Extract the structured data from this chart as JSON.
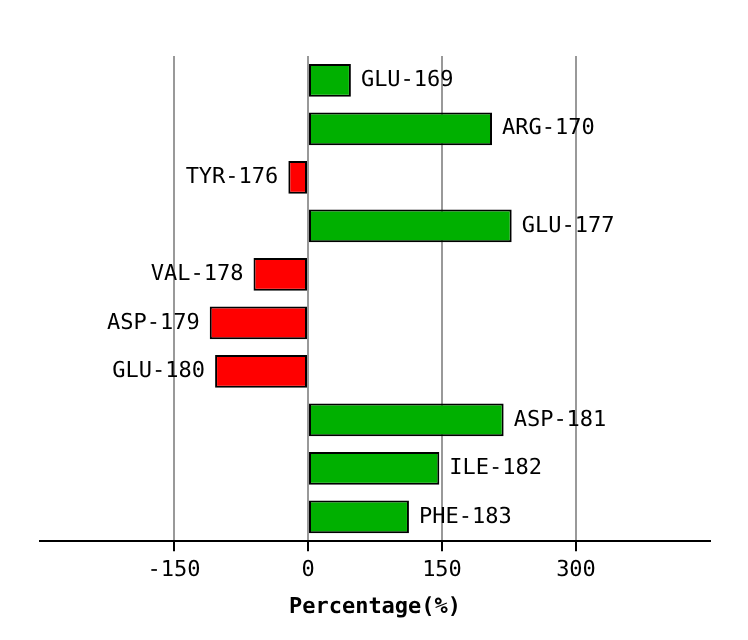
{
  "chart_data": {
    "type": "bar",
    "orientation": "horizontal",
    "xlabel": "Percentage(%)",
    "categories": [
      "GLU-169",
      "ARG-170",
      "TYR-176",
      "GLU-177",
      "VAL-178",
      "ASP-179",
      "GLU-180",
      "ASP-181",
      "ILE-182",
      "PHE-183"
    ],
    "values": [
      48,
      206,
      -22,
      228,
      -61,
      -110,
      -104,
      219,
      147,
      113
    ],
    "colors": [
      "#00b000",
      "#00b000",
      "#ff0000",
      "#00b000",
      "#ff0000",
      "#ff0000",
      "#ff0000",
      "#00b000",
      "#00b000",
      "#00b000"
    ],
    "xlim": [
      -300,
      450
    ],
    "xticks": [
      -150,
      0,
      150,
      300
    ],
    "grid": "x",
    "legend": false
  }
}
